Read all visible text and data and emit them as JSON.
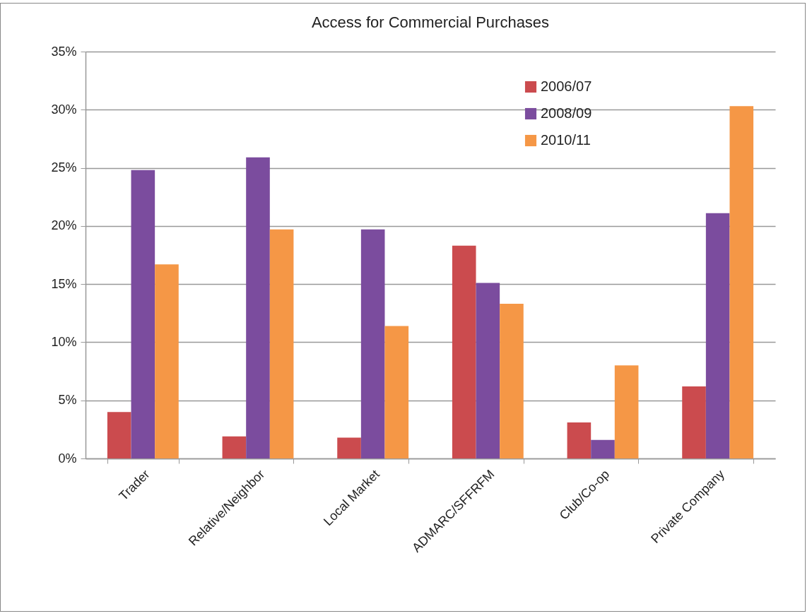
{
  "chart_data": {
    "type": "bar",
    "title": "Access for Commercial Purchases",
    "categories": [
      "Trader",
      "Relative/Neighbor",
      "Local Market",
      "ADMARC/SFFRFM",
      "Club/Co-op",
      "Private Company"
    ],
    "series": [
      {
        "name": "2006/07",
        "color": "#cb4b4e",
        "values": [
          4.0,
          1.9,
          1.8,
          18.3,
          3.1,
          6.2
        ]
      },
      {
        "name": "2008/09",
        "color": "#7b4c9e",
        "values": [
          24.8,
          25.9,
          19.7,
          15.1,
          1.6,
          21.1
        ]
      },
      {
        "name": "2010/11",
        "color": "#f59746",
        "values": [
          16.7,
          19.7,
          11.4,
          13.3,
          8.0,
          30.3
        ]
      }
    ],
    "ylim": [
      0,
      35
    ],
    "yticks": [
      {
        "value": 0,
        "label": "0%"
      },
      {
        "value": 5,
        "label": "5%"
      },
      {
        "value": 10,
        "label": "10%"
      },
      {
        "value": 15,
        "label": "15%"
      },
      {
        "value": 20,
        "label": "20%"
      },
      {
        "value": 25,
        "label": "25%"
      },
      {
        "value": 30,
        "label": "30%"
      },
      {
        "value": 35,
        "label": "35%"
      }
    ],
    "grid": "y",
    "legend": "top right"
  }
}
